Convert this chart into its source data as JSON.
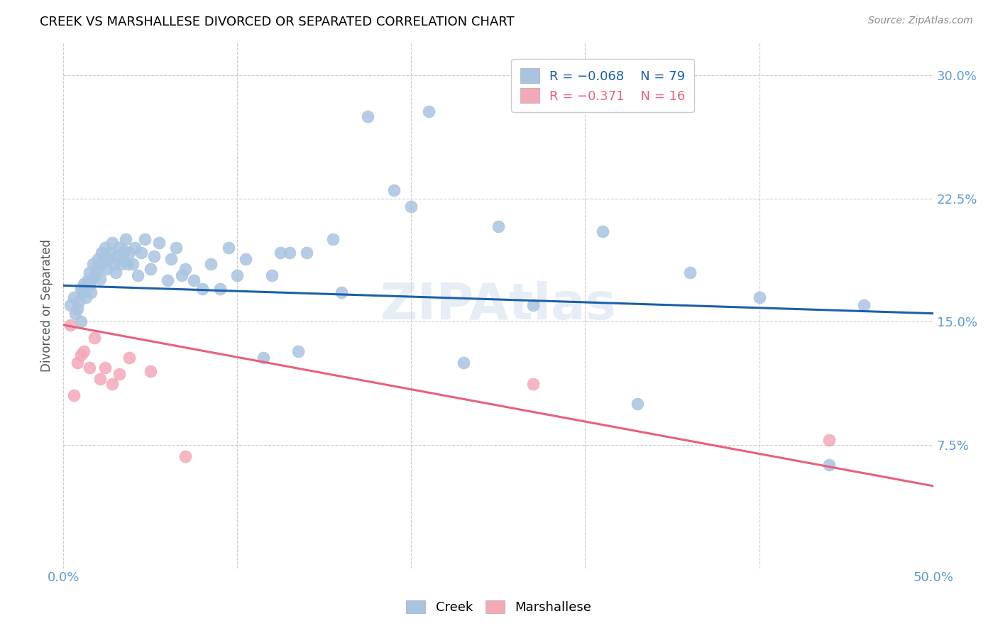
{
  "title": "CREEK VS MARSHALLESE DIVORCED OR SEPARATED CORRELATION CHART",
  "source": "Source: ZipAtlas.com",
  "ylabel": "Divorced or Separated",
  "xlabel_creek": "Creek",
  "xlabel_marshallese": "Marshallese",
  "xlim": [
    0.0,
    0.5
  ],
  "ylim": [
    0.0,
    0.32
  ],
  "creek_color": "#a8c4e0",
  "marshallese_color": "#f4a8b8",
  "creek_line_color": "#1a5fa8",
  "marshallese_line_color": "#e8607a",
  "creek_trend_x0": 0.0,
  "creek_trend_x1": 0.5,
  "creek_trend_y0": 0.172,
  "creek_trend_y1": 0.155,
  "marsh_trend_x0": 0.0,
  "marsh_trend_x1": 0.5,
  "marsh_trend_y0": 0.148,
  "marsh_trend_y1": 0.05,
  "creek_x": [
    0.004,
    0.006,
    0.007,
    0.008,
    0.009,
    0.01,
    0.01,
    0.011,
    0.012,
    0.013,
    0.014,
    0.015,
    0.015,
    0.016,
    0.016,
    0.017,
    0.018,
    0.019,
    0.02,
    0.021,
    0.022,
    0.022,
    0.023,
    0.024,
    0.025,
    0.026,
    0.027,
    0.028,
    0.029,
    0.03,
    0.031,
    0.032,
    0.033,
    0.034,
    0.035,
    0.036,
    0.037,
    0.038,
    0.04,
    0.041,
    0.043,
    0.045,
    0.047,
    0.05,
    0.052,
    0.055,
    0.06,
    0.062,
    0.065,
    0.068,
    0.07,
    0.075,
    0.08,
    0.085,
    0.09,
    0.095,
    0.1,
    0.105,
    0.115,
    0.12,
    0.125,
    0.13,
    0.135,
    0.14,
    0.155,
    0.16,
    0.175,
    0.19,
    0.2,
    0.21,
    0.23,
    0.25,
    0.27,
    0.31,
    0.33,
    0.36,
    0.4,
    0.44,
    0.46
  ],
  "creek_y": [
    0.16,
    0.165,
    0.155,
    0.158,
    0.162,
    0.15,
    0.17,
    0.168,
    0.173,
    0.165,
    0.175,
    0.172,
    0.18,
    0.175,
    0.168,
    0.185,
    0.178,
    0.182,
    0.188,
    0.176,
    0.185,
    0.192,
    0.188,
    0.195,
    0.182,
    0.188,
    0.192,
    0.198,
    0.185,
    0.18,
    0.19,
    0.195,
    0.185,
    0.188,
    0.193,
    0.2,
    0.185,
    0.192,
    0.185,
    0.195,
    0.178,
    0.192,
    0.2,
    0.182,
    0.19,
    0.198,
    0.175,
    0.188,
    0.195,
    0.178,
    0.182,
    0.175,
    0.17,
    0.185,
    0.17,
    0.195,
    0.178,
    0.188,
    0.128,
    0.178,
    0.192,
    0.192,
    0.132,
    0.192,
    0.2,
    0.168,
    0.275,
    0.23,
    0.22,
    0.278,
    0.125,
    0.208,
    0.16,
    0.205,
    0.1,
    0.18,
    0.165,
    0.063,
    0.16
  ],
  "marshallese_x": [
    0.004,
    0.006,
    0.008,
    0.01,
    0.012,
    0.015,
    0.018,
    0.021,
    0.024,
    0.028,
    0.032,
    0.038,
    0.05,
    0.07,
    0.27,
    0.44
  ],
  "marshallese_y": [
    0.148,
    0.105,
    0.125,
    0.13,
    0.132,
    0.122,
    0.14,
    0.115,
    0.122,
    0.112,
    0.118,
    0.128,
    0.12,
    0.068,
    0.112,
    0.078
  ]
}
